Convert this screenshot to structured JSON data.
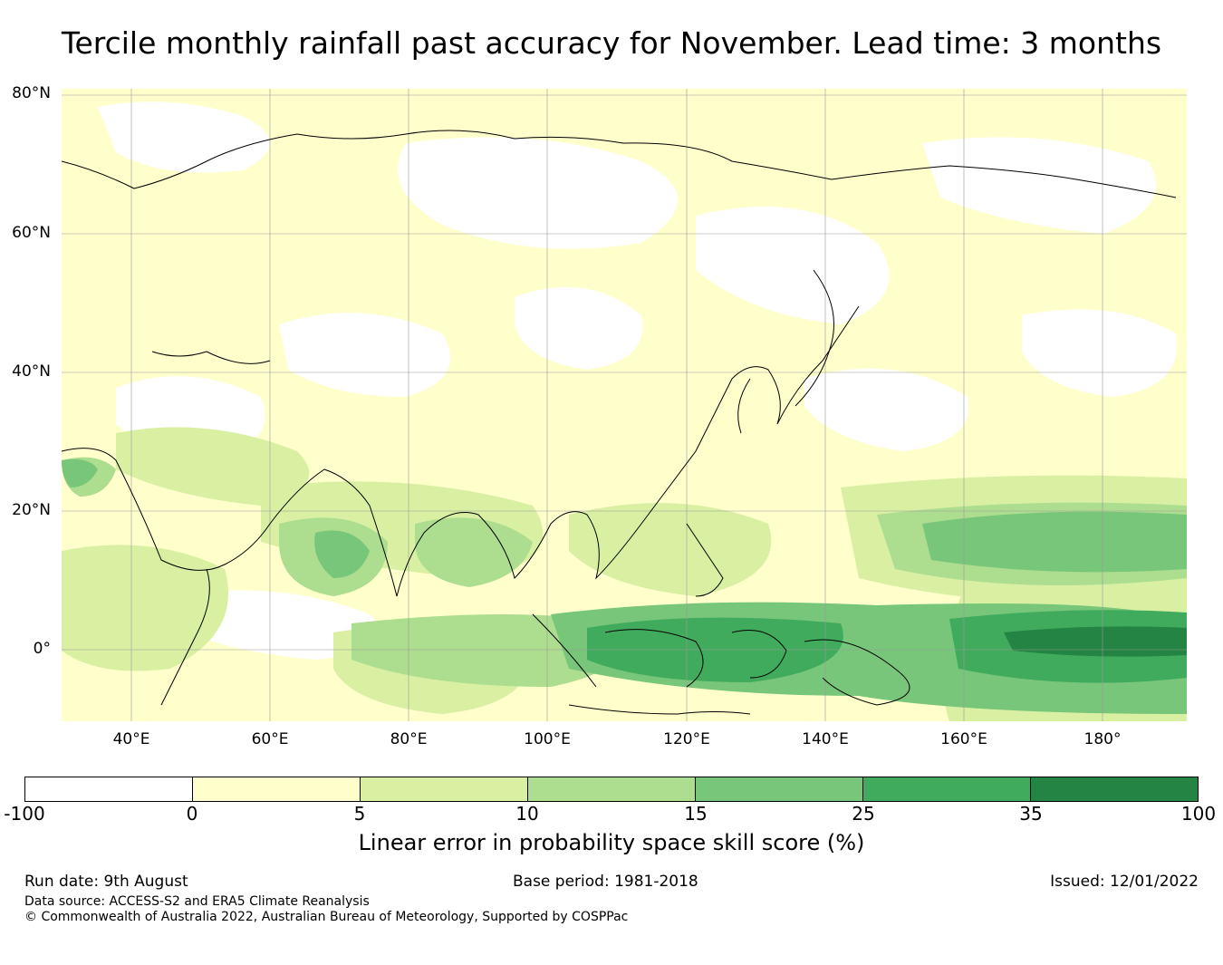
{
  "title": "Tercile monthly rainfall past accuracy for November. Lead time: 3 months",
  "map": {
    "lat_labels": [
      "80°N",
      "60°N",
      "40°N",
      "20°N",
      "0°"
    ],
    "lon_labels": [
      "40°E",
      "60°E",
      "80°E",
      "100°E",
      "120°E",
      "140°E",
      "160°E",
      "180°"
    ],
    "skill_regions": [
      {
        "region": "Arabian Sea / West India",
        "class": "10-15"
      },
      {
        "region": "Bay of Bengal",
        "class": "10-15"
      },
      {
        "region": "Equatorial Indian Ocean",
        "class": "10-15"
      },
      {
        "region": "Maritime Continent",
        "class": "25-35"
      },
      {
        "region": "Western Equatorial Pacific",
        "class": "25-35"
      },
      {
        "region": "Equatorial Pacific near dateline",
        "class": "35-100"
      },
      {
        "region": "North Pacific 15-20°N",
        "class": "15-25"
      },
      {
        "region": "Eurasia",
        "class": "0-5"
      }
    ]
  },
  "colorbar": {
    "label": "Linear error in probability space skill score (%)",
    "ticks": [
      "-100",
      "0",
      "5",
      "10",
      "15",
      "25",
      "35",
      "100"
    ],
    "colors": [
      "#ffffff",
      "#ffffcc",
      "#d9f0a3",
      "#addd8e",
      "#78c679",
      "#41ab5d",
      "#238443"
    ]
  },
  "footer": {
    "run_date": "Run date: 9th August",
    "base_period": "Base period: 1981-2018",
    "issued": "Issued: 12/01/2022",
    "data_source": "Data source: ACCESS-S2 and ERA5 Climate Reanalysis",
    "copyright": "© Commonwealth of Australia 2022, Australian Bureau of Meteorology, Supported by COSPPac"
  }
}
